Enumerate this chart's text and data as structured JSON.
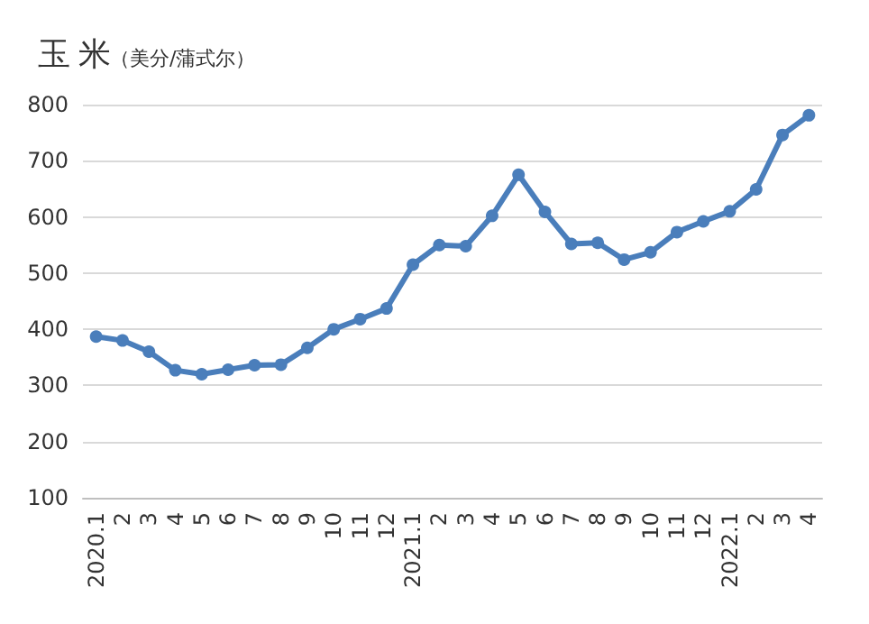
{
  "chart_data": {
    "type": "line",
    "title": "玉 米",
    "subtitle": "（美分/蒲式尔）",
    "categories": [
      "2020.1",
      "2",
      "3",
      "4",
      "5",
      "6",
      "7",
      "8",
      "9",
      "10",
      "11",
      "12",
      "2021.1",
      "2",
      "3",
      "4",
      "5",
      "6",
      "7",
      "8",
      "9",
      "10",
      "11",
      "12",
      "2022.1",
      "2",
      "3",
      "4"
    ],
    "series": [
      {
        "color": "#4a7ebb",
        "values": [
          387,
          380,
          360,
          327,
          320,
          328,
          336,
          337,
          367,
          400,
          418,
          437,
          515,
          550,
          548,
          602,
          675,
          609,
          552,
          554,
          524,
          537,
          573,
          592,
          610,
          649,
          746,
          781
        ]
      }
    ],
    "ylim": [
      100,
      800
    ],
    "yticks": [
      100,
      200,
      300,
      400,
      500,
      600,
      700,
      800
    ],
    "grid": "y",
    "marker": "circle",
    "line_style": "solid"
  }
}
